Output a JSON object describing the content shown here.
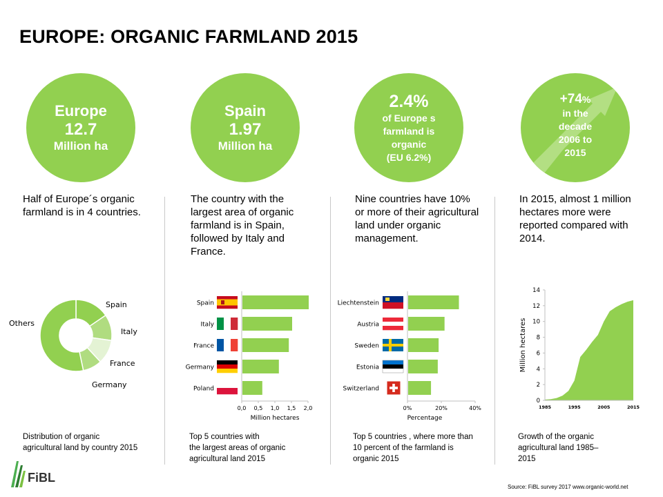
{
  "title": "EUROPE: ORGANIC FARMLAND 2015",
  "colors": {
    "accent": "#92d050",
    "shade1": "#b0dc80",
    "shade2": "#cde9ae",
    "shade3": "#e4f3d4",
    "text": "#000000",
    "axis": "#bfbfbf"
  },
  "circles": {
    "c1": {
      "name": "Europe",
      "value": "12.7",
      "unit": "Million ha"
    },
    "c2": {
      "name": "Spain",
      "value": "1.97",
      "unit": "Million ha"
    },
    "c3": {
      "value": "2.4%",
      "lines": [
        "of Europe s",
        "farmland is",
        "organic",
        "(EU 6.2%)"
      ]
    },
    "c4": {
      "value_main": "+74",
      "value_pct": "%",
      "lines": [
        "in the",
        "decade",
        "2006 to",
        "2015"
      ]
    }
  },
  "descriptions": [
    "Half of Europe´s organic farmland is in 4 countries.",
    "The country with the largest area of organic farmland is in Spain, followed by Italy  and France.",
    "Nine countries have 10% or more of their agricultural land under organic management.",
    "In 2015, almost 1 million hectares more were reported compared with 2014."
  ],
  "captions": [
    [
      "Distribution of organic",
      "agricultural land by country 2015"
    ],
    [
      "Top 5 countries with",
      "the largest areas of organic",
      "agricultural land 2015"
    ],
    [
      "Top 5 countries , where more than",
      "10  percent of the farmland is",
      "organic 2015"
    ],
    [
      "Growth of the organic",
      "agricultural land 1985–",
      "2015"
    ]
  ],
  "source": "Source: FiBL survey 2017 www.organic-world.net",
  "logo_text": "FiBL",
  "flag_icons": [
    "spain-flag-icon",
    "italy-flag-icon",
    "france-flag-icon",
    "germany-flag-icon",
    "poland-flag-icon",
    "liechtenstein-flag-icon",
    "austria-flag-icon",
    "sweden-flag-icon",
    "estonia-flag-icon",
    "switzerland-flag-icon"
  ],
  "chart_data": [
    {
      "type": "pie",
      "donut": true,
      "categories": [
        "Spain",
        "Italy",
        "France",
        "Germany",
        "Others"
      ],
      "values": [
        1.97,
        1.49,
        1.38,
        1.09,
        6.77
      ],
      "title": ""
    },
    {
      "type": "bar",
      "orientation": "horizontal",
      "categories": [
        "Spain",
        "Italy",
        "France",
        "Germany",
        "Poland"
      ],
      "values": [
        2.0,
        1.5,
        1.4,
        1.1,
        0.6
      ],
      "xlabel": "Million hectares",
      "xticks": [
        "0,0",
        "0,5",
        "1,0",
        "1,5",
        "2,0"
      ],
      "xlim": [
        0,
        2.0
      ]
    },
    {
      "type": "bar",
      "orientation": "horizontal",
      "categories": [
        "Liechtenstein",
        "Austria",
        "Sweden",
        "Estonia",
        "Switzerland"
      ],
      "values": [
        30,
        21.5,
        18,
        17.5,
        13.5
      ],
      "xlabel": "Percentage",
      "xticks": [
        "0%",
        "20%",
        "40%"
      ],
      "xlim": [
        0,
        40
      ]
    },
    {
      "type": "area",
      "x": [
        1985,
        1987,
        1989,
        1991,
        1993,
        1995,
        1997,
        1999,
        2001,
        2003,
        2005,
        2007,
        2009,
        2011,
        2013,
        2015
      ],
      "values": [
        0.1,
        0.15,
        0.3,
        0.6,
        1.2,
        2.5,
        5.5,
        6.4,
        7.4,
        8.3,
        10.0,
        11.3,
        11.8,
        12.2,
        12.5,
        12.7
      ],
      "ylabel": "Million hectares",
      "yticks": [
        "0",
        "2",
        "4",
        "6",
        "8",
        "10",
        "12",
        "14"
      ],
      "xticks": [
        "1985",
        "1995",
        "2005",
        "2015"
      ],
      "ylim": [
        0,
        14
      ],
      "xlim": [
        1985,
        2015
      ]
    }
  ]
}
